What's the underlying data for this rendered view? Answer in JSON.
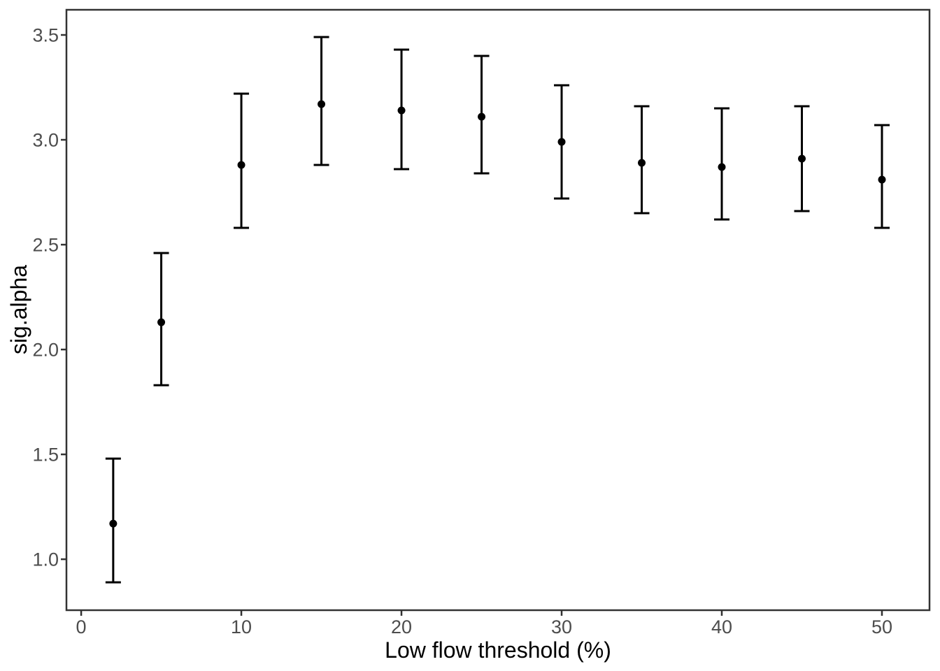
{
  "figure": {
    "background": "#ffffff"
  },
  "chart_data": {
    "type": "scatter",
    "subtype": "pointrange",
    "title": "",
    "xlabel": "Low flow threshold (%)",
    "ylabel": "sig.alpha",
    "x": [
      2,
      5,
      10,
      15,
      20,
      25,
      30,
      35,
      40,
      45,
      50
    ],
    "series": [
      {
        "name": "sig.alpha",
        "y": [
          1.17,
          2.13,
          2.88,
          3.17,
          3.14,
          3.11,
          2.99,
          2.89,
          2.87,
          2.91,
          2.81
        ],
        "ymin": [
          0.89,
          1.83,
          2.58,
          2.88,
          2.86,
          2.84,
          2.72,
          2.65,
          2.62,
          2.66,
          2.58
        ],
        "ymax": [
          1.48,
          2.46,
          3.22,
          3.49,
          3.43,
          3.4,
          3.26,
          3.16,
          3.15,
          3.16,
          3.07
        ]
      }
    ],
    "x_ticks": [
      {
        "value": 0,
        "label": "0"
      },
      {
        "value": 10,
        "label": "10"
      },
      {
        "value": 20,
        "label": "20"
      },
      {
        "value": 30,
        "label": "30"
      },
      {
        "value": 40,
        "label": "40"
      },
      {
        "value": 50,
        "label": "50"
      }
    ],
    "y_ticks": [
      {
        "value": 1.0,
        "label": "1.0"
      },
      {
        "value": 1.5,
        "label": "1.5"
      },
      {
        "value": 2.0,
        "label": "2.0"
      },
      {
        "value": 2.5,
        "label": "2.5"
      },
      {
        "value": 3.0,
        "label": "3.0"
      },
      {
        "value": 3.5,
        "label": "3.5"
      }
    ],
    "xlim": [
      -0.92,
      52.97
    ],
    "ylim": [
      0.757,
      3.62
    ],
    "grid": false,
    "legend": "none",
    "colors": {
      "point": "#000000",
      "errorbar": "#000000",
      "tick_label": "#4d4d4d",
      "axis_title": "#000000",
      "panel_border": "#333333",
      "tick_mark": "#333333",
      "background": "#ffffff"
    }
  }
}
